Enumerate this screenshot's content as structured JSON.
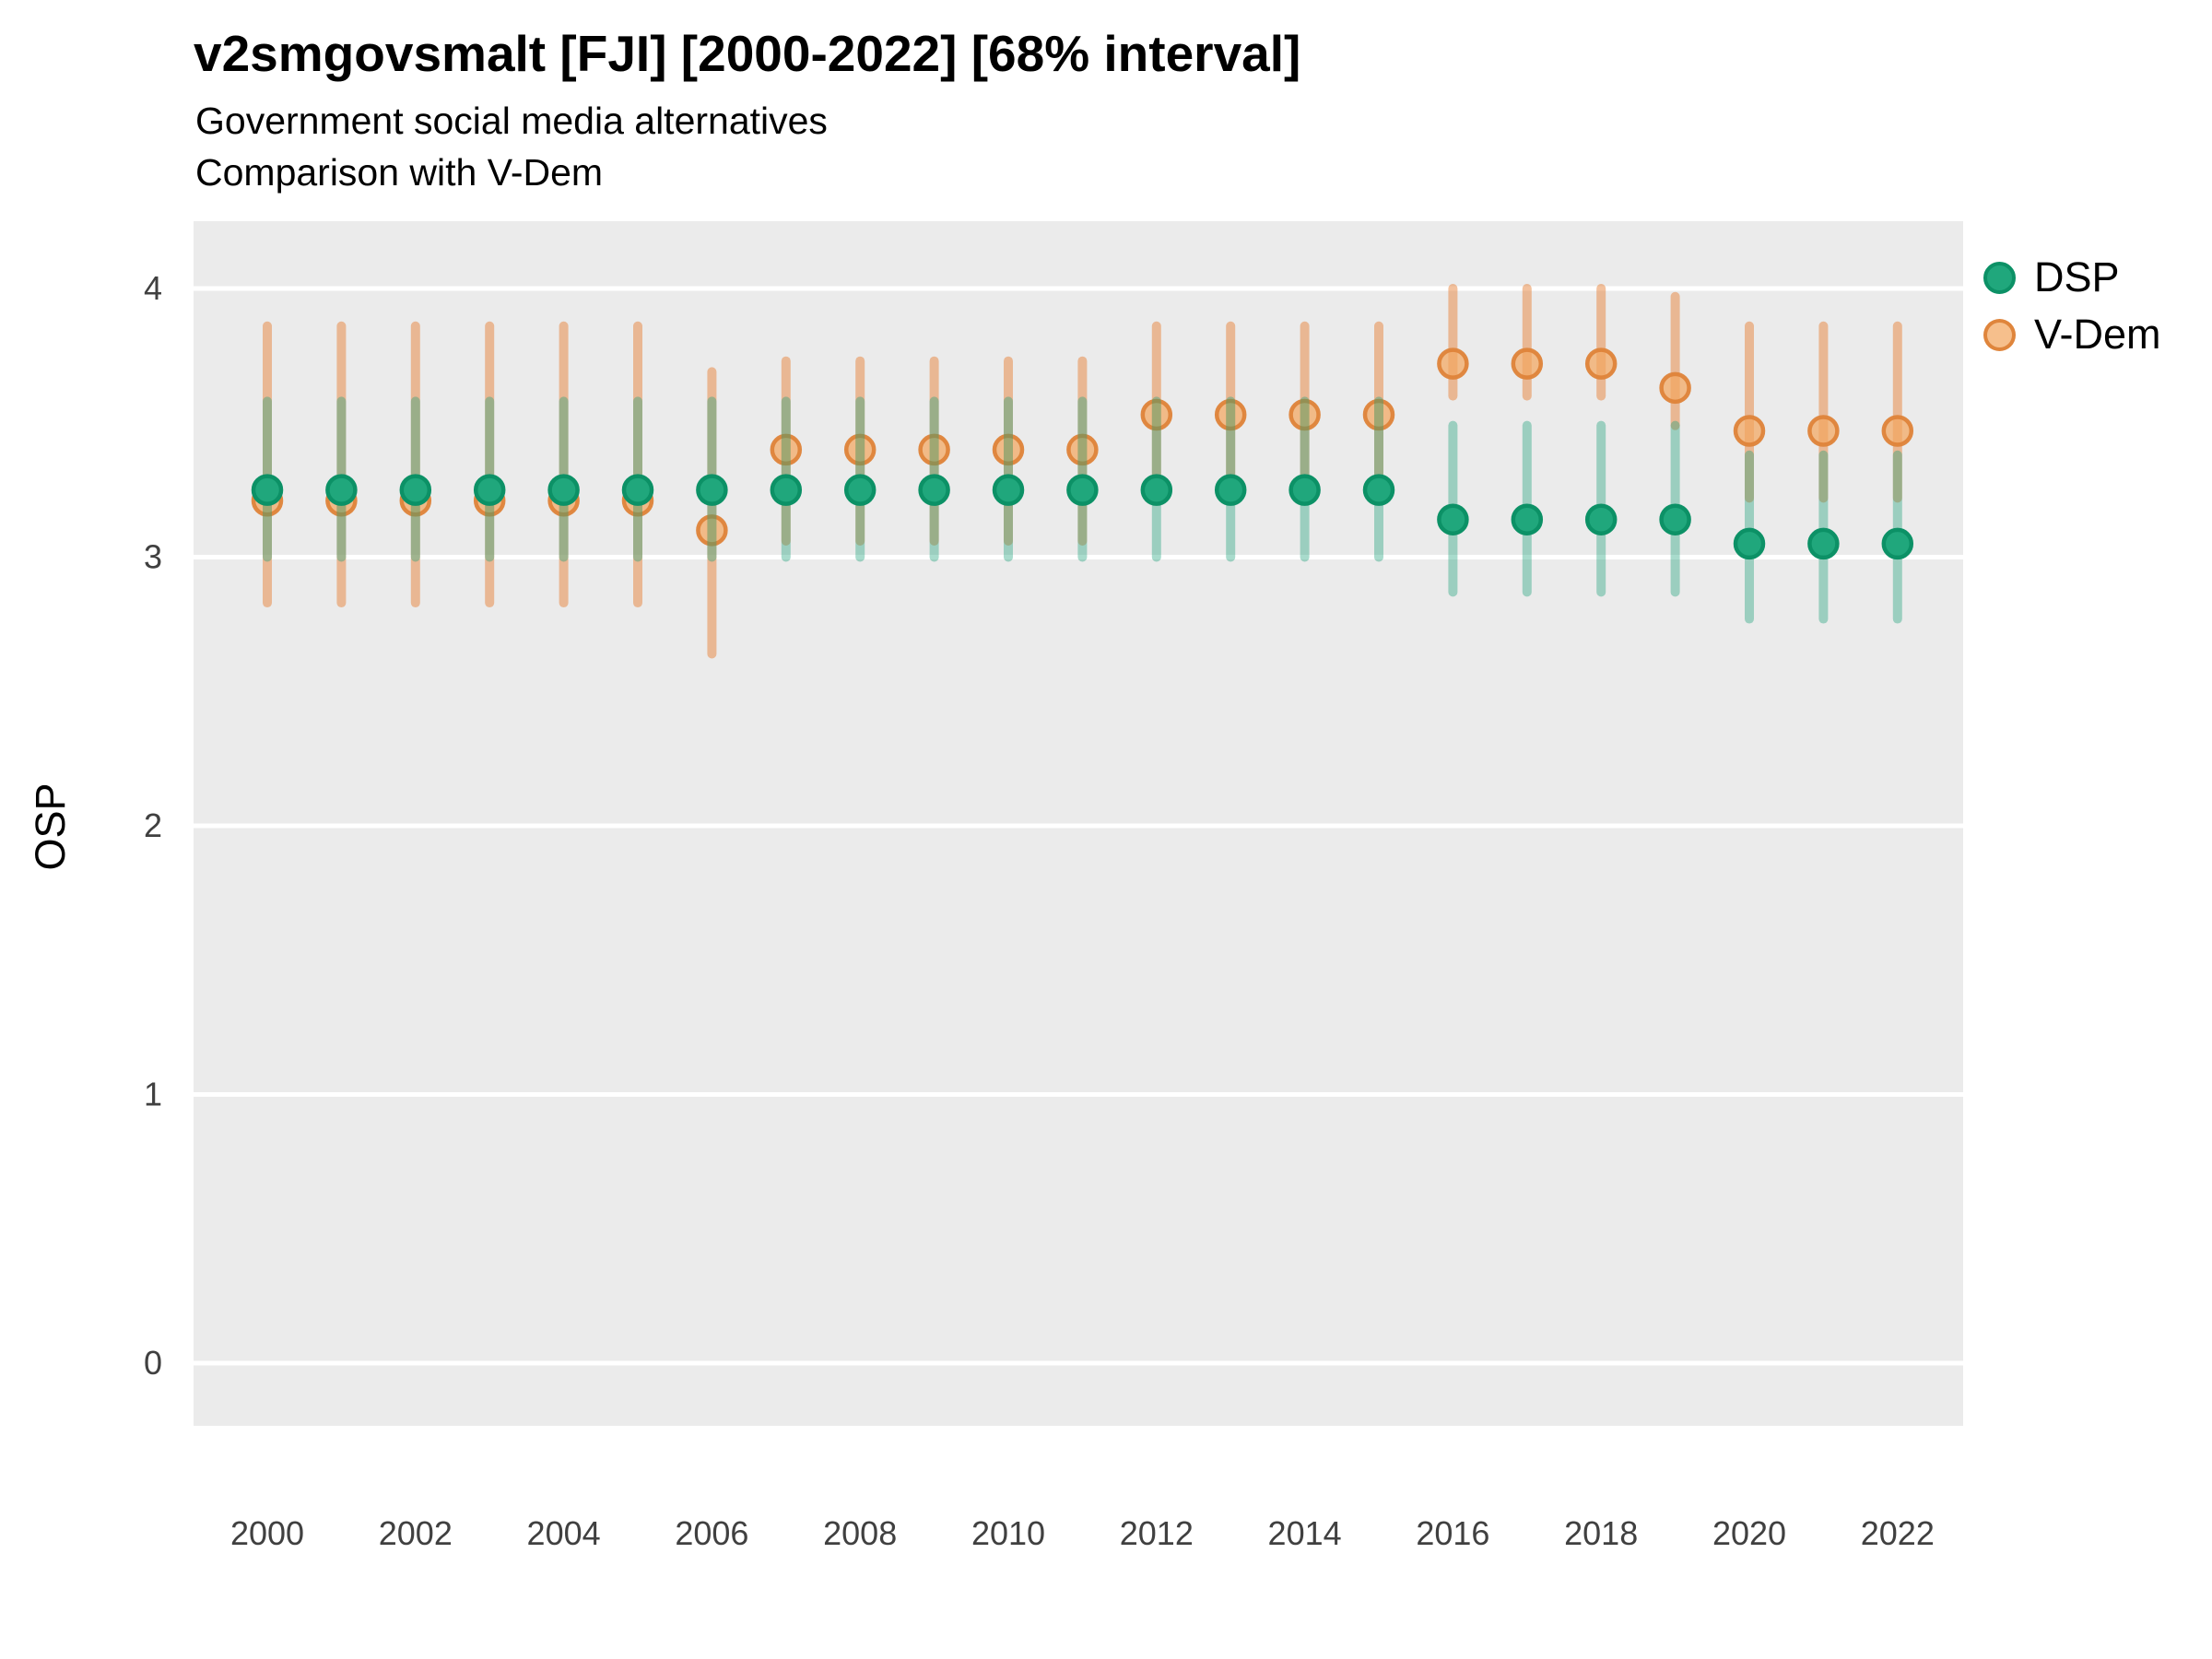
{
  "chart_data": {
    "type": "scatter",
    "title": "v2smgovsmalt [FJI] [2000-2022] [68% interval]",
    "subtitle1": "Government social media alternatives",
    "subtitle2": "Comparison with V-Dem",
    "ylabel": "OSP",
    "x": [
      2000,
      2001,
      2002,
      2003,
      2004,
      2005,
      2006,
      2007,
      2008,
      2009,
      2010,
      2011,
      2012,
      2013,
      2014,
      2015,
      2016,
      2017,
      2018,
      2019,
      2020,
      2021,
      2022
    ],
    "xticks": [
      2000,
      2002,
      2004,
      2006,
      2008,
      2010,
      2012,
      2014,
      2016,
      2018,
      2020,
      2022
    ],
    "yticks": [
      0,
      1,
      2,
      3,
      4
    ],
    "ylim": [
      -0.27,
      4.27
    ],
    "grid": "horizontal-major-white",
    "legend_position": "right-top",
    "panel_bg": "#EBEBEB",
    "gridline_color": "#FFFFFF",
    "tick_label_color": "#404040",
    "interval_level": "68%",
    "series": [
      {
        "name": "DSP",
        "point_fill": "#20A77C",
        "point_stroke": "#0C9166",
        "bar_color": "rgba(26,161,121,0.38)",
        "y": [
          3.25,
          3.25,
          3.25,
          3.25,
          3.25,
          3.25,
          3.25,
          3.25,
          3.25,
          3.25,
          3.25,
          3.25,
          3.25,
          3.25,
          3.25,
          3.25,
          3.14,
          3.14,
          3.14,
          3.14,
          3.05,
          3.05,
          3.05
        ],
        "lo": [
          3.0,
          3.0,
          3.0,
          3.0,
          3.0,
          3.0,
          3.0,
          3.0,
          3.0,
          3.0,
          3.0,
          3.0,
          3.0,
          3.0,
          3.0,
          3.0,
          2.87,
          2.87,
          2.87,
          2.87,
          2.77,
          2.77,
          2.77
        ],
        "hi": [
          3.58,
          3.58,
          3.58,
          3.58,
          3.58,
          3.58,
          3.58,
          3.58,
          3.58,
          3.58,
          3.58,
          3.58,
          3.58,
          3.58,
          3.58,
          3.58,
          3.49,
          3.49,
          3.49,
          3.49,
          3.38,
          3.38,
          3.38
        ]
      },
      {
        "name": "V-Dem",
        "point_fill": "rgba(243,166,95,0.72)",
        "point_stroke": "rgba(222,131,57,0.95)",
        "bar_color": "rgba(232,132,60,0.5)",
        "y": [
          3.21,
          3.21,
          3.21,
          3.21,
          3.21,
          3.21,
          3.1,
          3.4,
          3.4,
          3.4,
          3.4,
          3.4,
          3.53,
          3.53,
          3.53,
          3.53,
          3.72,
          3.72,
          3.72,
          3.63,
          3.47,
          3.47,
          3.47
        ],
        "lo": [
          2.83,
          2.83,
          2.83,
          2.83,
          2.83,
          2.83,
          2.64,
          3.06,
          3.06,
          3.06,
          3.06,
          3.06,
          3.22,
          3.22,
          3.22,
          3.22,
          3.6,
          3.6,
          3.6,
          3.49,
          3.22,
          3.22,
          3.22
        ],
        "hi": [
          3.86,
          3.86,
          3.86,
          3.86,
          3.86,
          3.86,
          3.69,
          3.73,
          3.73,
          3.73,
          3.73,
          3.73,
          3.86,
          3.86,
          3.86,
          3.86,
          4.0,
          4.0,
          4.0,
          3.97,
          3.86,
          3.86,
          3.86
        ]
      }
    ]
  }
}
